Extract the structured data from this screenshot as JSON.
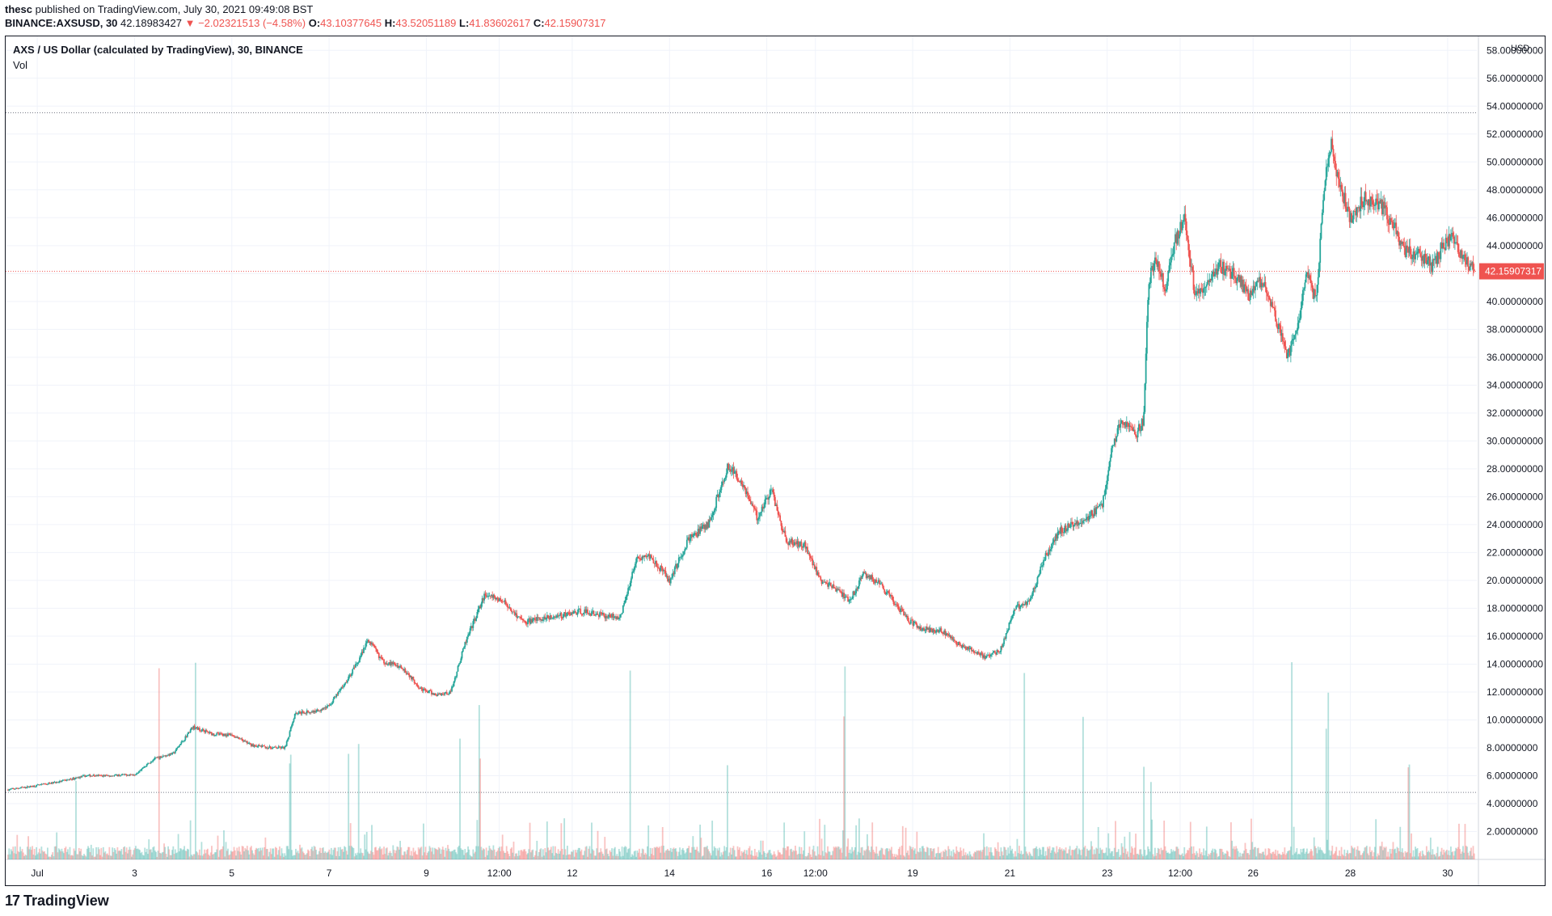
{
  "publisher": {
    "user": "thesc",
    "text": "published on TradingView.com, July 30, 2021 09:49:08 BST"
  },
  "quote": {
    "symbol": "BINANCE:AXSUSD, 30",
    "last": "42.18983427",
    "change": "▼ −2.02321513 (−4.58%)",
    "open_label": "O:",
    "open": "43.10377645",
    "high_label": "H:",
    "high": "43.52051189",
    "low_label": "L:",
    "low": "41.83602617",
    "close_label": "C:",
    "close": "42.15907317"
  },
  "legend": {
    "title": "AXS / US Dollar (calculated by TradingView), 30, BINANCE",
    "volume": "Vol"
  },
  "price_scale": {
    "currency": "USD",
    "last_price_label": "42.15907317"
  },
  "branding": {
    "logo_text": "TradingView",
    "logo_mark": "17"
  },
  "colors": {
    "up": "#26a69a",
    "down": "#ef5350",
    "grid": "#f0f3fa",
    "text": "#131722"
  },
  "chart_data": {
    "type": "candlestick",
    "symbol": "AXS / US Dollar",
    "interval": "30",
    "exchange": "BINANCE",
    "currency": "USD",
    "ylim": [
      0,
      59
    ],
    "y_ticks": [
      "2.00000000",
      "4.00000000",
      "6.00000000",
      "8.00000000",
      "10.00000000",
      "12.00000000",
      "14.00000000",
      "16.00000000",
      "18.00000000",
      "20.00000000",
      "22.00000000",
      "24.00000000",
      "26.00000000",
      "28.00000000",
      "30.00000000",
      "32.00000000",
      "34.00000000",
      "36.00000000",
      "38.00000000",
      "40.00000000",
      "42.00000000",
      "44.00000000",
      "46.00000000",
      "48.00000000",
      "50.00000000",
      "52.00000000",
      "54.00000000",
      "56.00000000",
      "58.00000000"
    ],
    "x_ticks": [
      {
        "label": "Jul",
        "day": 1.0
      },
      {
        "label": "3",
        "day": 3.0
      },
      {
        "label": "5",
        "day": 5.0
      },
      {
        "label": "7",
        "day": 7.0
      },
      {
        "label": "9",
        "day": 9.0
      },
      {
        "label": "12:00",
        "day": 10.5
      },
      {
        "label": "12",
        "day": 12.0
      },
      {
        "label": "14",
        "day": 14.0
      },
      {
        "label": "16",
        "day": 16.0
      },
      {
        "label": "12:00",
        "day": 17.0
      },
      {
        "label": "19",
        "day": 19.0
      },
      {
        "label": "21",
        "day": 21.0
      },
      {
        "label": "23",
        "day": 23.0
      },
      {
        "label": "12:00",
        "day": 24.5
      },
      {
        "label": "26",
        "day": 26.0
      },
      {
        "label": "28",
        "day": 28.0
      },
      {
        "label": "30",
        "day": 30.0
      }
    ],
    "x_range_days": [
      0.35,
      30.6
    ],
    "price_path": [
      [
        0.4,
        5.0
      ],
      [
        1.0,
        5.3
      ],
      [
        1.5,
        5.6
      ],
      [
        2.0,
        6.0
      ],
      [
        2.5,
        6.0
      ],
      [
        3.0,
        6.1
      ],
      [
        3.4,
        7.2
      ],
      [
        3.8,
        7.6
      ],
      [
        4.2,
        9.5
      ],
      [
        4.6,
        9.0
      ],
      [
        5.0,
        8.9
      ],
      [
        5.4,
        8.2
      ],
      [
        5.8,
        8.0
      ],
      [
        6.1,
        8.0
      ],
      [
        6.3,
        10.5
      ],
      [
        6.7,
        10.6
      ],
      [
        7.0,
        11.0
      ],
      [
        7.3,
        12.5
      ],
      [
        7.6,
        14.2
      ],
      [
        7.8,
        15.8
      ],
      [
        8.1,
        14.2
      ],
      [
        8.5,
        13.8
      ],
      [
        8.9,
        12.2
      ],
      [
        9.2,
        11.8
      ],
      [
        9.5,
        12.0
      ],
      [
        9.8,
        15.5
      ],
      [
        10.2,
        19.0
      ],
      [
        10.6,
        18.5
      ],
      [
        11.0,
        17.0
      ],
      [
        11.3,
        17.2
      ],
      [
        11.8,
        17.5
      ],
      [
        12.2,
        17.8
      ],
      [
        12.6,
        17.5
      ],
      [
        13.0,
        17.4
      ],
      [
        13.3,
        21.5
      ],
      [
        13.6,
        21.8
      ],
      [
        14.0,
        20.0
      ],
      [
        14.4,
        23.0
      ],
      [
        14.8,
        24.0
      ],
      [
        15.2,
        28.2
      ],
      [
        15.5,
        27.0
      ],
      [
        15.8,
        24.5
      ],
      [
        16.1,
        26.5
      ],
      [
        16.4,
        22.8
      ],
      [
        16.8,
        22.5
      ],
      [
        17.1,
        20.0
      ],
      [
        17.4,
        19.5
      ],
      [
        17.7,
        18.5
      ],
      [
        18.0,
        20.5
      ],
      [
        18.3,
        19.8
      ],
      [
        18.6,
        18.5
      ],
      [
        18.9,
        17.2
      ],
      [
        19.2,
        16.5
      ],
      [
        19.6,
        16.4
      ],
      [
        19.9,
        15.5
      ],
      [
        20.2,
        15.0
      ],
      [
        20.5,
        14.5
      ],
      [
        20.8,
        15.0
      ],
      [
        21.1,
        18.0
      ],
      [
        21.4,
        18.5
      ],
      [
        21.7,
        21.5
      ],
      [
        22.0,
        23.5
      ],
      [
        22.3,
        24.0
      ],
      [
        22.6,
        24.5
      ],
      [
        22.9,
        25.5
      ],
      [
        23.1,
        29.5
      ],
      [
        23.3,
        31.5
      ],
      [
        23.6,
        30.5
      ],
      [
        23.75,
        31.5
      ],
      [
        23.85,
        41.5
      ],
      [
        24.0,
        43.0
      ],
      [
        24.2,
        41.0
      ],
      [
        24.4,
        44.5
      ],
      [
        24.6,
        46.0
      ],
      [
        24.8,
        40.5
      ],
      [
        25.0,
        41.0
      ],
      [
        25.3,
        42.5
      ],
      [
        25.6,
        42.0
      ],
      [
        25.9,
        40.5
      ],
      [
        26.2,
        41.5
      ],
      [
        26.5,
        38.5
      ],
      [
        26.7,
        36.0
      ],
      [
        26.9,
        38.0
      ],
      [
        27.1,
        42.0
      ],
      [
        27.3,
        40.0
      ],
      [
        27.45,
        48.0
      ],
      [
        27.6,
        51.5
      ],
      [
        27.8,
        48.0
      ],
      [
        28.0,
        46.0
      ],
      [
        28.3,
        47.5
      ],
      [
        28.6,
        47.0
      ],
      [
        28.9,
        45.5
      ],
      [
        29.1,
        43.5
      ],
      [
        29.4,
        43.5
      ],
      [
        29.7,
        42.5
      ],
      [
        29.9,
        44.0
      ],
      [
        30.1,
        44.5
      ],
      [
        30.35,
        43.0
      ],
      [
        30.55,
        42.2
      ]
    ],
    "last_close": 42.15907317,
    "period_high": 53.52,
    "period_low": 4.8,
    "volume_spike_days": [
      1.8,
      3.5,
      4.25,
      6.2,
      7.4,
      7.6,
      9.7,
      10.1,
      13.2,
      15.2,
      17.6,
      21.3,
      22.5,
      23.75,
      23.9,
      26.8,
      27.5,
      27.55,
      29.2
    ]
  }
}
